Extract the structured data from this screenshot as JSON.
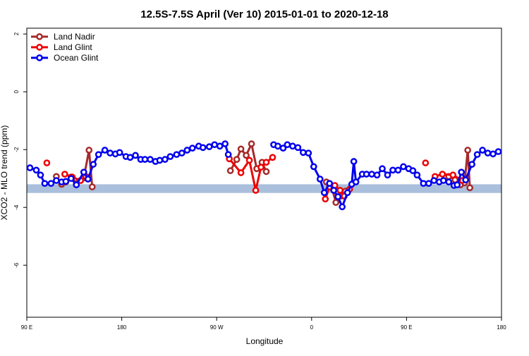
{
  "chart_data": {
    "type": "line",
    "title": "12.5S-7.5S April (Ver 10)   2015-01-01 to 2020-12-18",
    "x_label": "Longitude",
    "y_label": "XCO2 - MLO trend (ppm)",
    "xlim": [
      90,
      540
    ],
    "ylim": [
      -7.8,
      2.2
    ],
    "xticks": [
      {
        "value": 90,
        "label": "90 E"
      },
      {
        "value": 180,
        "label": "180"
      },
      {
        "value": 270,
        "label": "90 W"
      },
      {
        "value": 360,
        "label": "0"
      },
      {
        "value": 450,
        "label": "90 E"
      },
      {
        "value": 540,
        "label": "180"
      }
    ],
    "yticks": [
      2,
      0,
      -2,
      -4,
      -6
    ],
    "band": [
      -3.5,
      -3.2
    ],
    "band_color": "#a9bfdb",
    "legend": "top-left",
    "series": [
      {
        "name": "Land Nadir",
        "color": "#a52a2a",
        "x": [
          118,
          123,
          127,
          132,
          137,
          144,
          149,
          152,
          null,
          283,
          289,
          293,
          298,
          303,
          308,
          313,
          317,
          null,
          374,
          379,
          383,
          388,
          392,
          null,
          490,
          496,
          501,
          505,
          508,
          510
        ],
        "values": [
          -2.93,
          -3.2,
          -3.12,
          -2.95,
          -3.17,
          -2.98,
          -2.02,
          -3.29,
          null,
          -2.73,
          -2.34,
          -1.98,
          -2.2,
          -1.8,
          -2.66,
          -2.44,
          -2.76,
          null,
          -3.12,
          -3.29,
          -3.83,
          -3.61,
          -3.44,
          null,
          -2.93,
          -3.05,
          -3.22,
          -3.15,
          -2.02,
          -3.32
        ]
      },
      {
        "name": "Land Glint",
        "color": "#ee0000",
        "x": [
          109,
          null,
          126,
          133,
          141,
          146,
          null,
          282,
          293,
          301,
          307,
          312,
          317,
          323,
          null,
          373,
          377,
          382,
          387,
          391,
          396,
          null,
          468,
          null,
          477,
          484,
          494,
          503
        ],
        "values": [
          -2.46,
          null,
          -2.85,
          -2.95,
          -3.07,
          -2.93,
          null,
          -2.32,
          -2.8,
          -2.37,
          -3.41,
          -2.61,
          -2.44,
          -2.27,
          null,
          -3.71,
          -3.29,
          -3.24,
          -3.41,
          -3.61,
          -3.37,
          null,
          -2.46,
          null,
          -2.93,
          -2.85,
          -2.88,
          -3.07
        ]
      },
      {
        "name": "Ocean Glint",
        "color": "#0000ee",
        "x": [
          93,
          99,
          103,
          107,
          113,
          118,
          123,
          127,
          132,
          137,
          144,
          148,
          153,
          158,
          164,
          169,
          174,
          178,
          184,
          188,
          193,
          198,
          202,
          207,
          212,
          216,
          221,
          226,
          232,
          237,
          242,
          247,
          253,
          257,
          263,
          268,
          273,
          278,
          281,
          null,
          324,
          328,
          333,
          337,
          342,
          347,
          352,
          357,
          362,
          368,
          372,
          377,
          381,
          385,
          389,
          394,
          398,
          400,
          402,
          408,
          412,
          417,
          422,
          427,
          432,
          437,
          442,
          447,
          452,
          456,
          460,
          466,
          471,
          476,
          481,
          485,
          490,
          495,
          498,
          502,
          506,
          512,
          517,
          522,
          527,
          532,
          537
        ],
        "values": [
          -2.63,
          -2.71,
          -2.88,
          -3.17,
          -3.17,
          -3.07,
          -3.12,
          -3.1,
          -3.0,
          -3.22,
          -2.78,
          -3.02,
          -2.51,
          -2.17,
          -2.02,
          -2.12,
          -2.15,
          -2.1,
          -2.24,
          -2.27,
          -2.2,
          -2.34,
          -2.34,
          -2.34,
          -2.41,
          -2.37,
          -2.34,
          -2.24,
          -2.17,
          -2.12,
          -2.02,
          -1.95,
          -1.88,
          -1.93,
          -1.9,
          -1.83,
          -1.88,
          -1.8,
          -2.17,
          null,
          -1.83,
          -1.88,
          -1.95,
          -1.83,
          -1.88,
          -1.93,
          -2.1,
          -2.12,
          -2.59,
          -3.02,
          -3.49,
          -3.17,
          -3.41,
          -3.63,
          -3.98,
          -3.49,
          -3.2,
          -2.41,
          -3.12,
          -2.85,
          -2.85,
          -2.85,
          -2.88,
          -2.66,
          -2.88,
          -2.71,
          -2.71,
          -2.59,
          -2.66,
          -2.73,
          -2.88,
          -3.17,
          -3.17,
          -3.07,
          -3.12,
          -3.07,
          -3.12,
          -3.24,
          -3.22,
          -2.78,
          -3.05,
          -2.51,
          -2.17,
          -2.02,
          -2.12,
          -2.15,
          -2.07
        ]
      }
    ]
  }
}
